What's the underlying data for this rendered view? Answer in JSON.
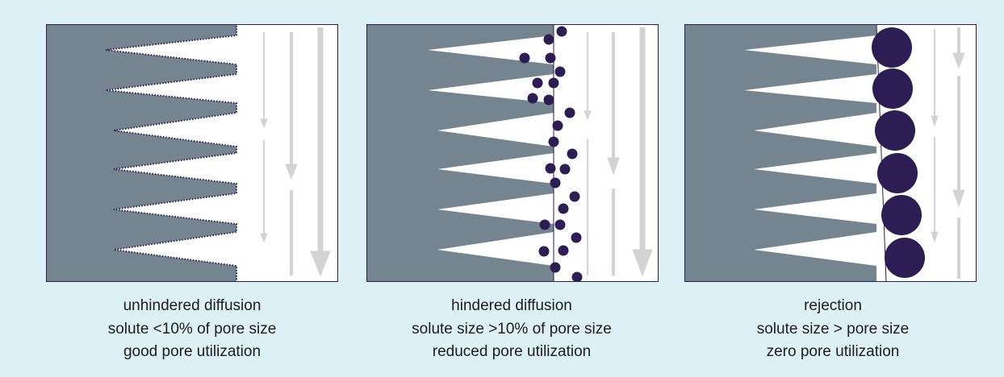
{
  "colors": {
    "background": "#dcf0f6",
    "matrix": "#75858f",
    "pore": "#ffffff",
    "solute": "#2c1d52",
    "frame": "#2c1d52",
    "flow_arrow": "#d3d3d3"
  },
  "panels": [
    {
      "id": "unhindered",
      "caption": [
        "unhindered diffusion",
        "solute <10% of pore size",
        "good pore utilization"
      ]
    },
    {
      "id": "hindered",
      "caption": [
        "hindered diffusion",
        "solute size >10% of pore size",
        "reduced pore utilization"
      ]
    },
    {
      "id": "rejection",
      "caption": [
        "rejection",
        "solute size > pore size",
        "zero pore utilization"
      ]
    }
  ]
}
